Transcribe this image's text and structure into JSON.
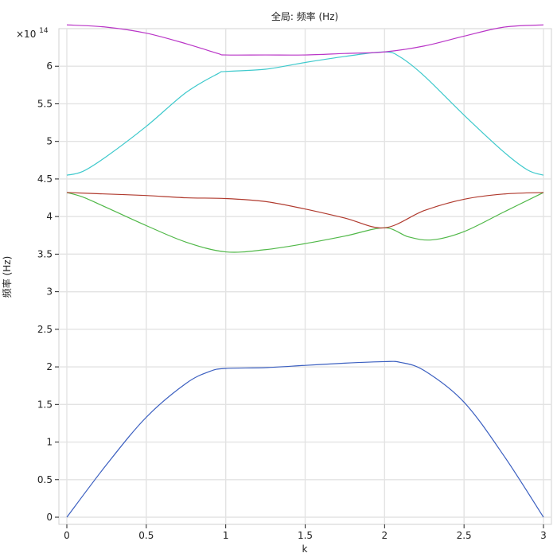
{
  "chart_data": {
    "type": "line",
    "title": "全局: 频率 (Hz)",
    "xlabel": "k",
    "ylabel": "频率 (Hz)",
    "y_multiplier": "×10",
    "y_exponent": "14",
    "xlim": [
      0,
      3
    ],
    "ylim": [
      0,
      6.5
    ],
    "x_ticks": [
      0,
      0.5,
      1,
      1.5,
      2,
      2.5,
      3
    ],
    "x_tick_labels": [
      "0",
      "0.5",
      "1",
      "1.5",
      "2",
      "2.5",
      "3"
    ],
    "y_ticks": [
      0,
      0.5,
      1,
      1.5,
      2,
      2.5,
      3,
      3.5,
      4,
      4.5,
      5,
      5.5,
      6
    ],
    "y_tick_labels": [
      "0",
      "0.5",
      "1",
      "1.5",
      "2",
      "2.5",
      "3",
      "3.5",
      "4",
      "4.5",
      "5",
      "5.5",
      "6"
    ],
    "grid": true,
    "series": [
      {
        "color": "#3b5fc0",
        "x": [
          0,
          0.25,
          0.5,
          0.75,
          0.9,
          1.0,
          1.25,
          1.5,
          1.75,
          2.0,
          2.1,
          2.25,
          2.5,
          2.75,
          3.0
        ],
        "y": [
          0,
          0.7,
          1.33,
          1.78,
          1.94,
          1.98,
          1.99,
          2.02,
          2.05,
          2.07,
          2.06,
          1.95,
          1.53,
          0.82,
          0
        ]
      },
      {
        "color": "#50b848",
        "x": [
          0,
          0.1,
          0.25,
          0.5,
          0.75,
          1.0,
          1.25,
          1.5,
          1.75,
          2.0,
          2.15,
          2.3,
          2.5,
          2.75,
          3.0
        ],
        "y": [
          4.32,
          4.26,
          4.12,
          3.88,
          3.66,
          3.53,
          3.56,
          3.64,
          3.74,
          3.85,
          3.73,
          3.69,
          3.8,
          4.06,
          4.32
        ]
      },
      {
        "color": "#b03a2e",
        "x": [
          0,
          0.25,
          0.5,
          0.75,
          1.0,
          1.25,
          1.5,
          1.75,
          2.0,
          2.25,
          2.5,
          2.75,
          3.0
        ],
        "y": [
          4.32,
          4.3,
          4.28,
          4.25,
          4.24,
          4.2,
          4.1,
          3.98,
          3.85,
          4.08,
          4.23,
          4.3,
          4.32
        ]
      },
      {
        "color": "#3ec9cc",
        "x": [
          0,
          0.1,
          0.25,
          0.5,
          0.75,
          0.95,
          1.0,
          1.25,
          1.5,
          1.75,
          2.0,
          2.1,
          2.25,
          2.5,
          2.75,
          2.9,
          3.0
        ],
        "y": [
          4.55,
          4.6,
          4.8,
          5.2,
          5.65,
          5.9,
          5.93,
          5.96,
          6.05,
          6.13,
          6.19,
          6.12,
          5.87,
          5.35,
          4.86,
          4.62,
          4.55
        ]
      },
      {
        "color": "#b935c7",
        "x": [
          0,
          0.25,
          0.5,
          0.75,
          0.95,
          1.0,
          1.25,
          1.5,
          1.75,
          2.0,
          2.25,
          2.5,
          2.75,
          3.0
        ],
        "y": [
          6.55,
          6.52,
          6.44,
          6.3,
          6.17,
          6.15,
          6.15,
          6.15,
          6.17,
          6.19,
          6.27,
          6.4,
          6.52,
          6.55
        ]
      }
    ]
  }
}
